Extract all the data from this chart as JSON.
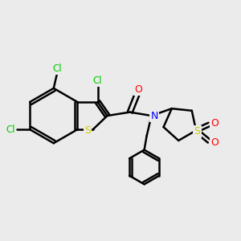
{
  "bg_color": "#ebebeb",
  "atom_colors": {
    "C": "#000000",
    "Cl": "#00cc00",
    "S": "#cccc00",
    "N": "#0000ff",
    "O": "#ff0000"
  },
  "bond_color": "#000000",
  "bond_width": 1.8,
  "figsize": [
    3.0,
    3.0
  ],
  "dpi": 100
}
